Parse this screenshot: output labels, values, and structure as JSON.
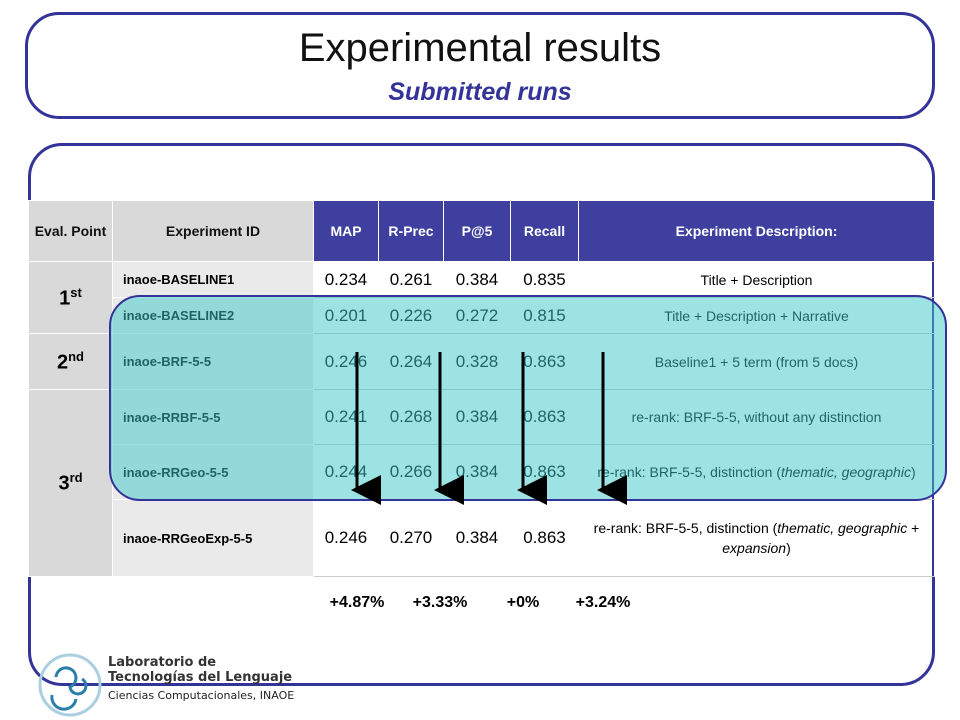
{
  "title": "Experimental results",
  "subtitle": "Submitted runs",
  "table": {
    "header": [
      "Eval. Point",
      "Experiment ID",
      "MAP",
      "R-Prec",
      "P@5",
      "Recall",
      "Experiment Description:"
    ],
    "groups": [
      {
        "eval": {
          "main": "1",
          "sup": "st"
        },
        "rows": [
          {
            "id": "inaoe-BASELINE1",
            "values": [
              "0.234",
              "0.261",
              "0.384",
              "0.835"
            ],
            "description": [
              "Title + Description"
            ]
          },
          {
            "id": "inaoe-BASELINE2",
            "values": [
              "0.201",
              "0.226",
              "0.272",
              "0.815"
            ],
            "description": [
              "Title + Description + Narrative"
            ]
          }
        ]
      },
      {
        "eval": {
          "main": "2",
          "sup": "nd"
        },
        "rows": [
          {
            "id": "inaoe-BRF-5-5",
            "values": [
              "0.246",
              "0.264",
              "0.328",
              "0.863"
            ],
            "description": [
              "Baseline1 + 5 term (from 5 docs)"
            ]
          }
        ]
      },
      {
        "eval": {
          "main": "3",
          "sup": "rd"
        },
        "rows": [
          {
            "id": "inaoe-RRBF-5-5",
            "values": [
              "0.241",
              "0.268",
              "0.384",
              "0.863"
            ],
            "description": [
              "re-rank: BRF-5-5,  without any distinction"
            ]
          },
          {
            "id": "inaoe-RRGeo-5-5",
            "values": [
              "0.244",
              "0.266",
              "0.384",
              "0.863"
            ],
            "description": [
              "re-rank:  BRF-5-5, distinction (",
              "thematic, geographic",
              ")"
            ]
          },
          {
            "id": "inaoe-RRGeoExp-5-5",
            "values": [
              "0.246",
              "0.270",
              "0.384",
              "0.863"
            ],
            "description": [
              "re-rank: BRF-5-5, distinction (",
              "thematic, geographic",
              " + ",
              "expansion",
              ")"
            ]
          }
        ]
      }
    ]
  },
  "improvements": [
    "+4.87%",
    "+3.33%",
    "+0%",
    "+3.24%"
  ],
  "logo": {
    "line1": "Laboratorio de",
    "line2": "Tecnologías del Lenguaje",
    "line3": "Ciencias Computacionales, INAOE"
  }
}
